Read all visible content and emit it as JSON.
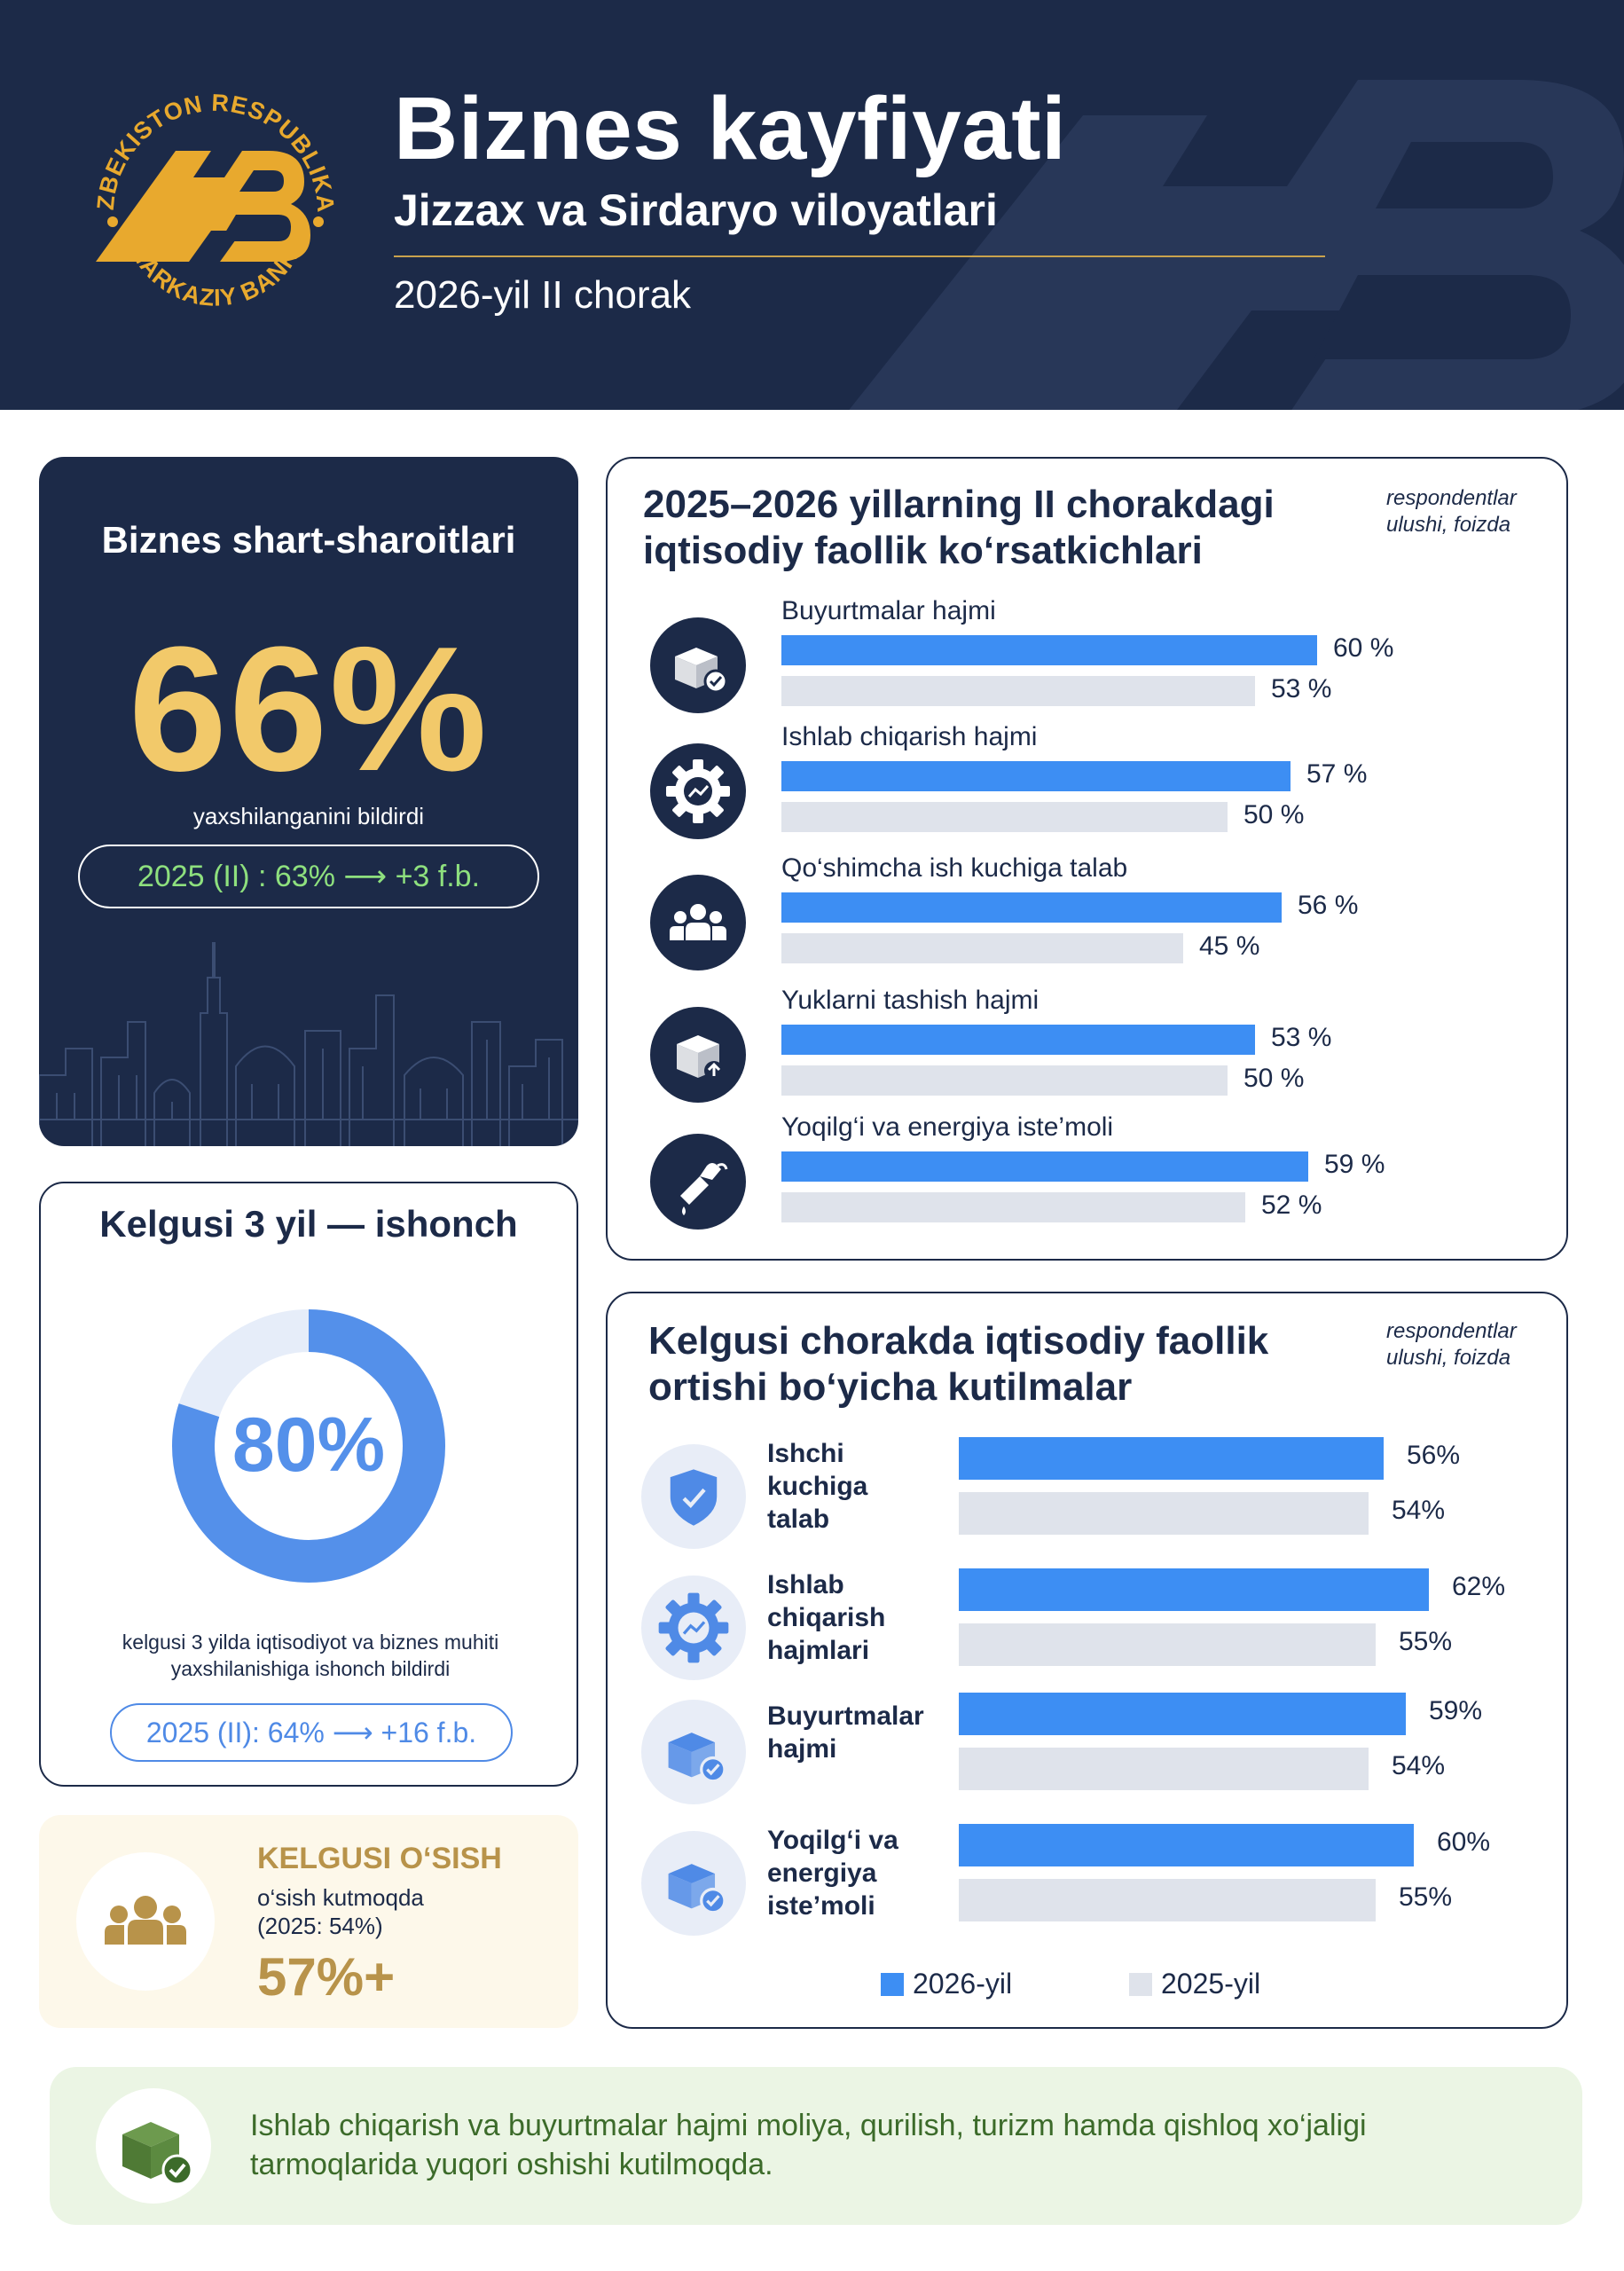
{
  "header": {
    "title": "Biznes kayfiyati",
    "subtitle": "Jizzax va Sirdaryo viloyatlari",
    "period": "2026-yil II chorak",
    "logo": {
      "top_arc": "O‘ZBEKISTON RESPUBLIKASI",
      "bottom_arc": "MARKAZIY BANKI",
      "monogram": "MB"
    }
  },
  "business_conditions": {
    "title": "Biznes shart-sharoitlari",
    "value": "66%",
    "caption": "yaxshilanganini bildirdi",
    "comparison": "2025 (II) : 63% ⟶ +3 f.b."
  },
  "confidence": {
    "title": "Kelgusi 3 yil — ishonch",
    "value": "80%",
    "fraction": 0.8,
    "caption_line1": "kelgusi 3 yilda iqtisodiyot va biznes muhiti",
    "caption_line2": "yaxshilanishiga  ishonch bildirdi",
    "comparison": "2025 (II): 64% ⟶ +16 f.b."
  },
  "growth": {
    "heading": "KELGUSI O‘SISH",
    "line1": "o‘sish kutmoqda",
    "line2": "(2025: 54%)",
    "value": "57%+",
    "icon": "people-icon"
  },
  "activity": {
    "title_line1": "2025–2026 yillarning II chorakdagi",
    "title_line2": "iqtisodiy faollik ko‘rsatkichlari",
    "note_line1": "respondentlar",
    "note_line2": "ulushi, foizda",
    "colors": {
      "y2026": "#3d8ef3",
      "y2025": "#dfe3eb"
    }
  },
  "expectations": {
    "title_line1": "Kelgusi chorakda iqtisodiy faollik",
    "title_line2": "ortishi bo‘yicha kutilmalar",
    "note_line1": "respondentlar",
    "note_line2": "ulushi, foizda",
    "legend_2026": "2026-yil",
    "legend_2025": "2025-yil"
  },
  "chart_data": [
    {
      "type": "bar",
      "orientation": "horizontal",
      "categories": [
        "Buyurtmalar hajmi",
        "Ishlab chiqarish hajmi",
        "Qo‘shimcha ish kuchiga talab",
        "Yuklarni tashish hajmi",
        "Yoqilg‘i va energiya iste’moli"
      ],
      "icons": [
        "box-check-icon",
        "gear-growth-icon",
        "people-icon",
        "box-upload-icon",
        "fuel-nozzle-icon"
      ],
      "series": [
        {
          "values": [
            60,
            57,
            56,
            53,
            59
          ],
          "labels": [
            "60 %",
            "57 %",
            "56 %",
            "53 %",
            "59 %"
          ]
        },
        {
          "values": [
            53,
            50,
            45,
            50,
            52
          ],
          "labels": [
            "53 %",
            "50 %",
            "45 %",
            "50 %",
            "52 %"
          ]
        }
      ],
      "xlim": [
        0,
        100
      ]
    },
    {
      "type": "bar",
      "orientation": "horizontal",
      "categories": [
        "Ishchi kuchiga talab",
        "Ishlab chiqarish hajmlari",
        "Buyurtmalar hajmi",
        "Yoqilg‘i va energiya iste’moli"
      ],
      "icons": [
        "shield-check-icon",
        "gear-growth-icon",
        "box-check-icon",
        "box-check-icon"
      ],
      "series": [
        {
          "name": "2026-yil",
          "values": [
            56,
            62,
            59,
            60
          ],
          "labels": [
            "56%",
            "62%",
            "59%",
            "60%"
          ]
        },
        {
          "name": "2025-yil",
          "values": [
            54,
            55,
            54,
            55
          ],
          "labels": [
            "54%",
            "55%",
            "54%",
            "55%"
          ]
        }
      ],
      "xlim": [
        0,
        100
      ]
    }
  ],
  "footer": {
    "line1": "Ishlab chiqarish va buyurtmalar hajmi moliya,  qurilish, turizm hamda qishloq xo‘jaligi",
    "line2": "tarmoqlarida  yuqori oshishi kutilmoqda.",
    "icon": "box-check-icon"
  }
}
